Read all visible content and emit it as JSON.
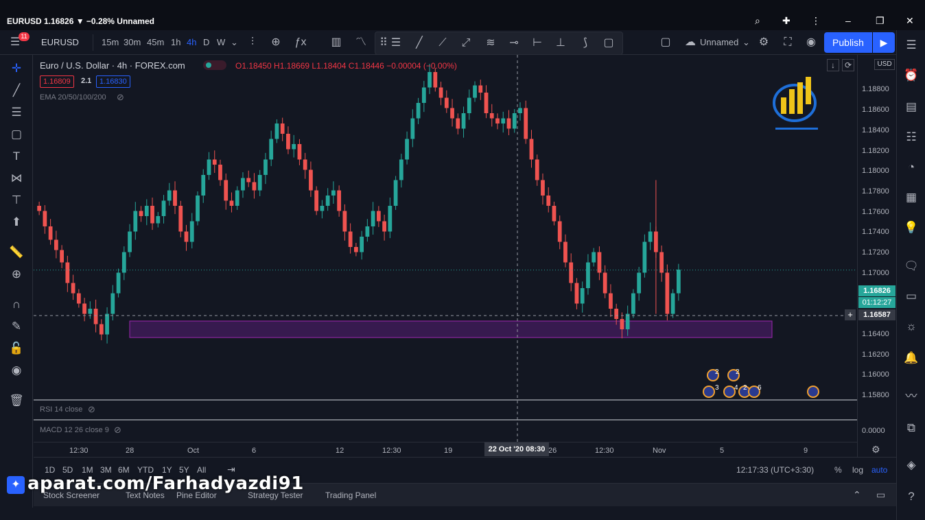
{
  "window": {
    "title": "EURUSD 1.16826 ▼ −0.28% Unnamed",
    "badge": "11"
  },
  "toolbar": {
    "symbol": "EURUSD",
    "intervals": [
      "15m",
      "30m",
      "45m",
      "1h",
      "4h",
      "D",
      "W"
    ],
    "active_interval": "4h",
    "layout_name": "Unnamed",
    "publish_label": "Publish"
  },
  "legend": {
    "title": "Euro / U.S. Dollar · 4h · FOREX.com",
    "ohlc": "O1.18450 H1.18669 L1.18404 C1.18446 −0.00004 (−0.00%)",
    "bid": "1.16809",
    "spread": "2.1",
    "ask": "1.16830",
    "ema_label": "EMA 20/50/100/200",
    "rsi_label": "RSI 14 close",
    "macd_label": "MACD 12 26 close 9"
  },
  "price_axis": {
    "currency": "USD",
    "labels": [
      "1.18800",
      "1.18600",
      "1.18400",
      "1.18200",
      "1.18000",
      "1.17800",
      "1.17600",
      "1.17400",
      "1.17200",
      "1.17000",
      "1.16400",
      "1.16200",
      "1.16000",
      "1.15800"
    ],
    "current_price": "1.16826",
    "countdown": "01:12:27",
    "crosshair_price": "1.16587",
    "macd_zero": "0.0000"
  },
  "time_axis": {
    "labels": [
      "12:30",
      "28",
      "Oct",
      "6",
      "12",
      "12:30",
      "19",
      "26",
      "12:30",
      "Nov",
      "5",
      "9"
    ],
    "crosshair_time": "22 Oct '20   08:30"
  },
  "range_bar": {
    "ranges": [
      "1D",
      "5D",
      "1M",
      "3M",
      "6M",
      "YTD",
      "1Y",
      "5Y",
      "All"
    ],
    "clock": "12:17:33 (UTC+3:30)",
    "percent": "%",
    "log": "log",
    "auto": "auto"
  },
  "bottom_tabs": [
    "Stock Screener",
    "Text Notes",
    "Pine Editor",
    "Strategy Tester",
    "Trading Panel"
  ],
  "events": {
    "counts": [
      "2",
      "2",
      "3",
      "4",
      "2",
      "6"
    ]
  },
  "watermark": "aparat.com/Farhadyazdi91",
  "chart_data": {
    "type": "candlestick",
    "symbol": "EURUSD",
    "timeframe": "4h",
    "ylim": [
      1.1565,
      1.1885
    ],
    "zone": {
      "low": 1.1617,
      "high": 1.1633
    },
    "current_price": 1.16826,
    "closes": [
      1.174,
      1.1725,
      1.1712,
      1.1702,
      1.169,
      1.167,
      1.166,
      1.165,
      1.164,
      1.1645,
      1.163,
      1.162,
      1.164,
      1.166,
      1.168,
      1.17,
      1.172,
      1.174,
      1.1735,
      1.1745,
      1.1728,
      1.1735,
      1.175,
      1.176,
      1.1745,
      1.172,
      1.171,
      1.173,
      1.1755,
      1.1775,
      1.179,
      1.1785,
      1.177,
      1.175,
      1.1745,
      1.176,
      1.1772,
      1.1768,
      1.176,
      1.1775,
      1.179,
      1.181,
      1.1825,
      1.1815,
      1.18,
      1.1805,
      1.179,
      1.178,
      1.176,
      1.174,
      1.1745,
      1.1755,
      1.176,
      1.174,
      1.172,
      1.1705,
      1.17,
      1.1715,
      1.1725,
      1.174,
      1.173,
      1.172,
      1.1745,
      1.177,
      1.179,
      1.181,
      1.183,
      1.1845,
      1.186,
      1.1875,
      1.186,
      1.185,
      1.184,
      1.183,
      1.182,
      1.1835,
      1.185,
      1.1862,
      1.1855,
      1.1835,
      1.183,
      1.1825,
      1.183,
      1.182,
      1.1835,
      1.184,
      1.181,
      1.179,
      1.177,
      1.1755,
      1.1745,
      1.173,
      1.171,
      1.169,
      1.167,
      1.165,
      1.1665,
      1.169,
      1.17,
      1.168,
      1.166,
      1.1645,
      1.1635,
      1.1625,
      1.164,
      1.166,
      1.168,
      1.171,
      1.172,
      1.17,
      1.168,
      1.164,
      1.166,
      1.1683
    ]
  }
}
